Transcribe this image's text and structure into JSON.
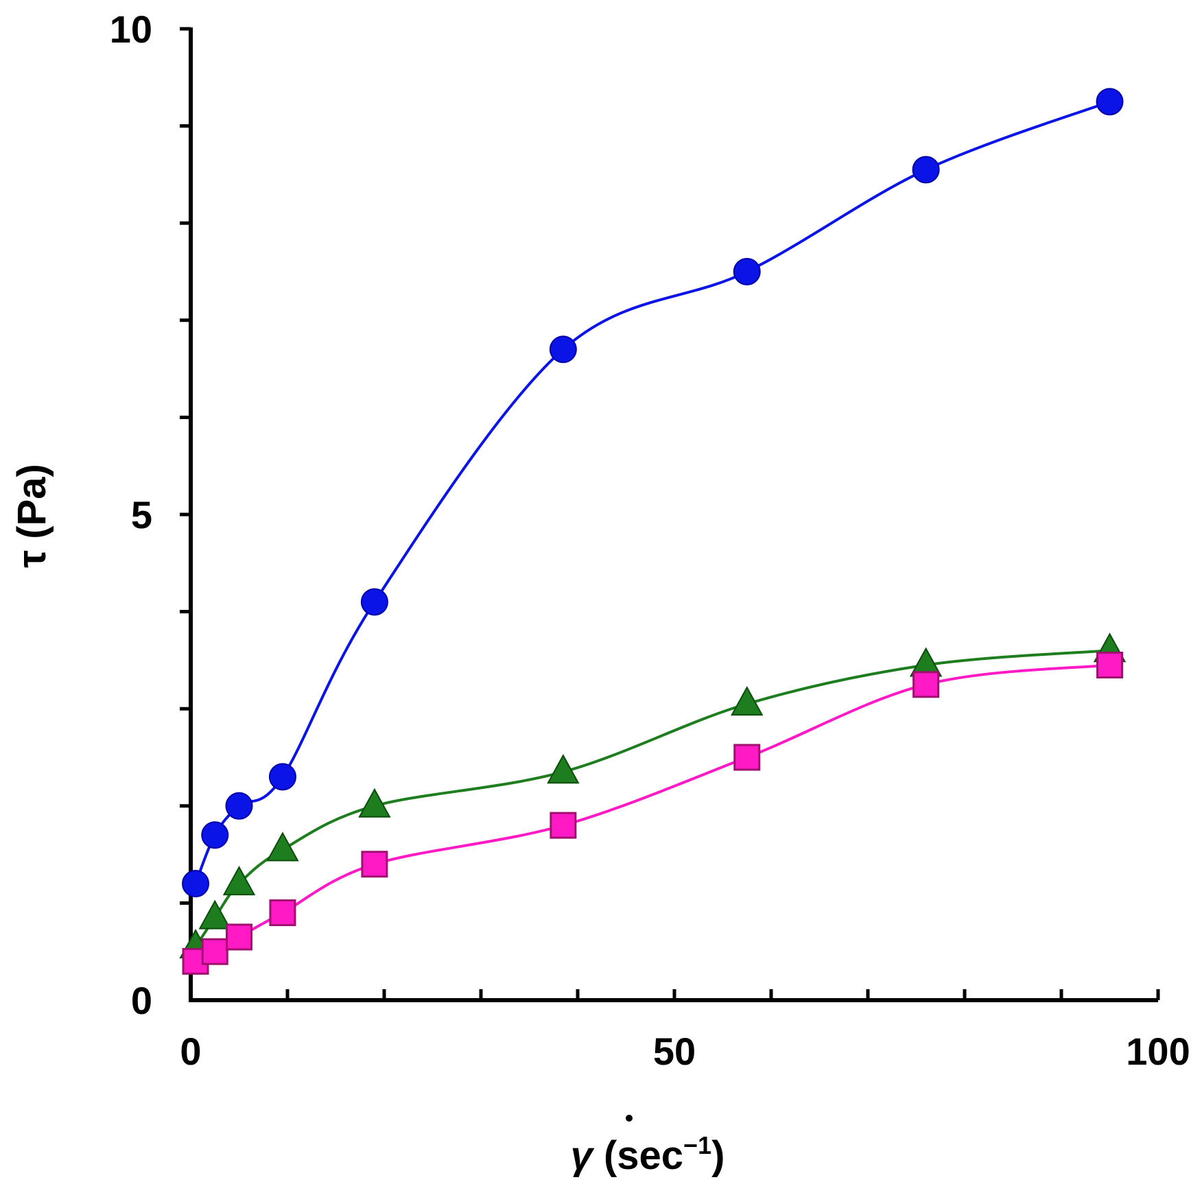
{
  "chart_data": {
    "type": "line",
    "title": "",
    "xlabel": "γ̇ (sec⁻¹)",
    "xlabel_parts": {
      "symbol": "γ",
      "rest": " (sec",
      "sup": "−1",
      "close": ")"
    },
    "ylabel": "τ (Pa)",
    "xlim": [
      0,
      100
    ],
    "ylim": [
      0,
      10
    ],
    "x_major_ticks": [
      0,
      50,
      100
    ],
    "x_minor_ticks": [
      10,
      20,
      30,
      40,
      60,
      70,
      80,
      90
    ],
    "y_major_ticks": [
      0,
      5,
      10
    ],
    "y_minor_ticks": [
      1,
      2,
      3,
      4,
      6,
      7,
      8,
      9
    ],
    "x_tick_labels": [
      "0",
      "50",
      "100"
    ],
    "y_tick_labels": [
      "0",
      "5",
      "10"
    ],
    "legend": "none",
    "grid": false,
    "series": [
      {
        "name": "blue-circles",
        "color": "#0a14e6",
        "marker": "circle",
        "x": [
          0.5,
          2.5,
          5,
          9.5,
          19,
          38.5,
          57.5,
          76,
          95
        ],
        "y": [
          1.2,
          1.7,
          2.0,
          2.3,
          4.1,
          6.7,
          7.5,
          8.55,
          9.25
        ]
      },
      {
        "name": "green-triangles",
        "color": "#1e7d1e",
        "marker": "triangle",
        "x": [
          0.5,
          2.5,
          5,
          9.5,
          19,
          38.5,
          57.5,
          76,
          95
        ],
        "y": [
          0.55,
          0.85,
          1.2,
          1.55,
          2.0,
          2.35,
          3.05,
          3.45,
          3.6
        ]
      },
      {
        "name": "magenta-squares",
        "color": "#ff1ac6",
        "marker": "square",
        "x": [
          0.5,
          2.5,
          5,
          9.5,
          19,
          38.5,
          57.5,
          76,
          95
        ],
        "y": [
          0.4,
          0.5,
          0.65,
          0.9,
          1.4,
          1.8,
          2.5,
          3.25,
          3.45
        ]
      }
    ]
  }
}
